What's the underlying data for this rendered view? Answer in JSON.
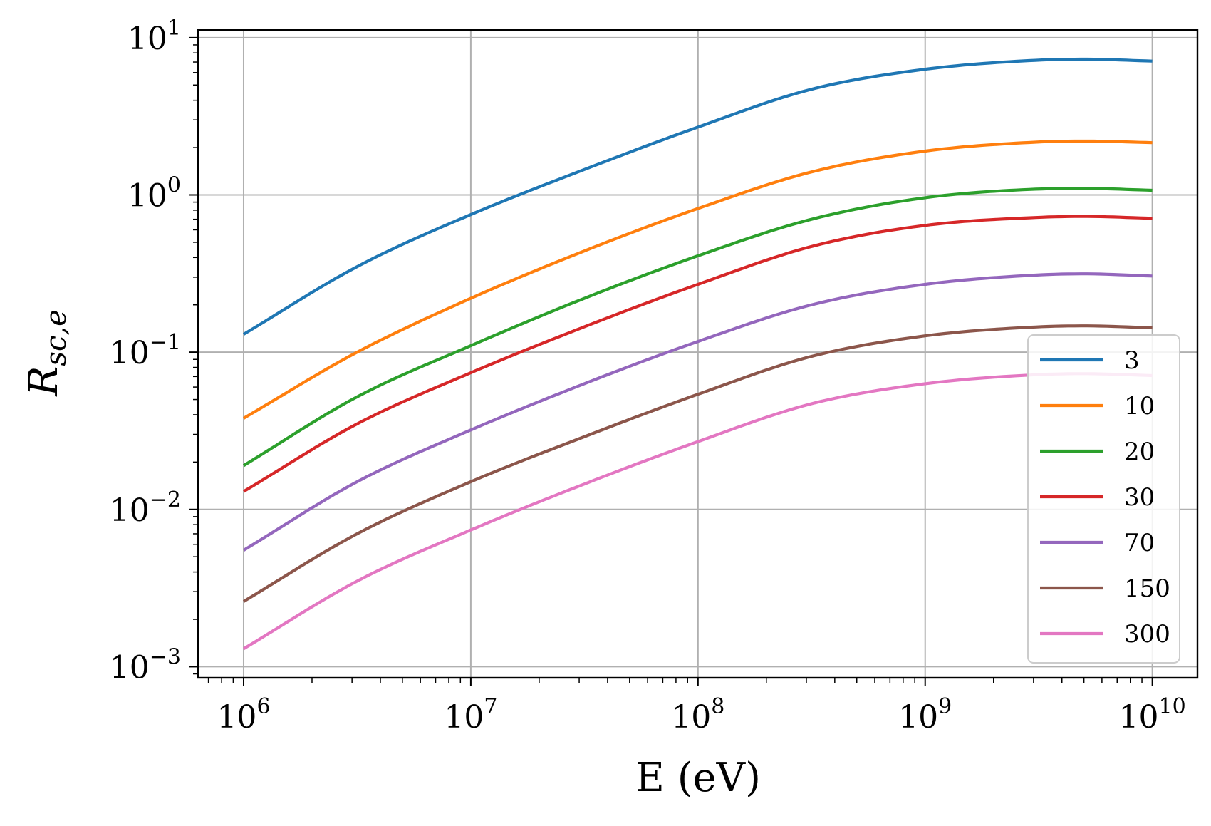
{
  "chart_data": {
    "type": "line",
    "xscale": "log",
    "yscale": "log",
    "xlabel": "E (eV)",
    "ylabel": "R_sc,e",
    "xlim": [
      630000,
      15800000000
    ],
    "ylim": [
      0.00085,
      11.2
    ],
    "grid": true,
    "legend_position": "lower-right",
    "x_ticks": [
      {
        "value": 1000000,
        "base": "10",
        "exp": "6"
      },
      {
        "value": 10000000,
        "base": "10",
        "exp": "7"
      },
      {
        "value": 100000000,
        "base": "10",
        "exp": "8"
      },
      {
        "value": 1000000000,
        "base": "10",
        "exp": "9"
      },
      {
        "value": 10000000000,
        "base": "10",
        "exp": "10"
      }
    ],
    "y_ticks": [
      {
        "value": 0.001,
        "base": "10",
        "exp": "−3"
      },
      {
        "value": 0.01,
        "base": "10",
        "exp": "−2"
      },
      {
        "value": 0.1,
        "base": "10",
        "exp": "−1"
      },
      {
        "value": 1,
        "base": "10",
        "exp": "0"
      },
      {
        "value": 10,
        "base": "10",
        "exp": "1"
      }
    ],
    "x": [
      1000000,
      3160000,
      10000000,
      31600000,
      100000000,
      316000000,
      1000000000,
      3160000000,
      5000000000,
      10000000000
    ],
    "series": [
      {
        "name": "3",
        "color": "#1f77b4",
        "values": [
          0.13,
          0.35,
          0.75,
          1.45,
          2.7,
          4.7,
          6.3,
          7.2,
          7.3,
          7.1
        ]
      },
      {
        "name": "10",
        "color": "#ff7f0e",
        "values": [
          0.038,
          0.1,
          0.22,
          0.44,
          0.82,
          1.4,
          1.9,
          2.17,
          2.2,
          2.15
        ]
      },
      {
        "name": "20",
        "color": "#2ca02c",
        "values": [
          0.019,
          0.052,
          0.11,
          0.22,
          0.41,
          0.7,
          0.96,
          1.09,
          1.1,
          1.07
        ]
      },
      {
        "name": "30",
        "color": "#d62728",
        "values": [
          0.013,
          0.035,
          0.074,
          0.145,
          0.27,
          0.47,
          0.64,
          0.72,
          0.73,
          0.71
        ]
      },
      {
        "name": "70",
        "color": "#9467bd",
        "values": [
          0.0055,
          0.015,
          0.032,
          0.063,
          0.117,
          0.2,
          0.27,
          0.31,
          0.315,
          0.305
        ]
      },
      {
        "name": "150",
        "color": "#8c564b",
        "values": [
          0.0026,
          0.007,
          0.015,
          0.029,
          0.054,
          0.094,
          0.127,
          0.145,
          0.147,
          0.143
        ]
      },
      {
        "name": "300",
        "color": "#e377c2",
        "values": [
          0.0013,
          0.0035,
          0.0074,
          0.0145,
          0.027,
          0.047,
          0.063,
          0.072,
          0.073,
          0.071
        ]
      }
    ]
  }
}
